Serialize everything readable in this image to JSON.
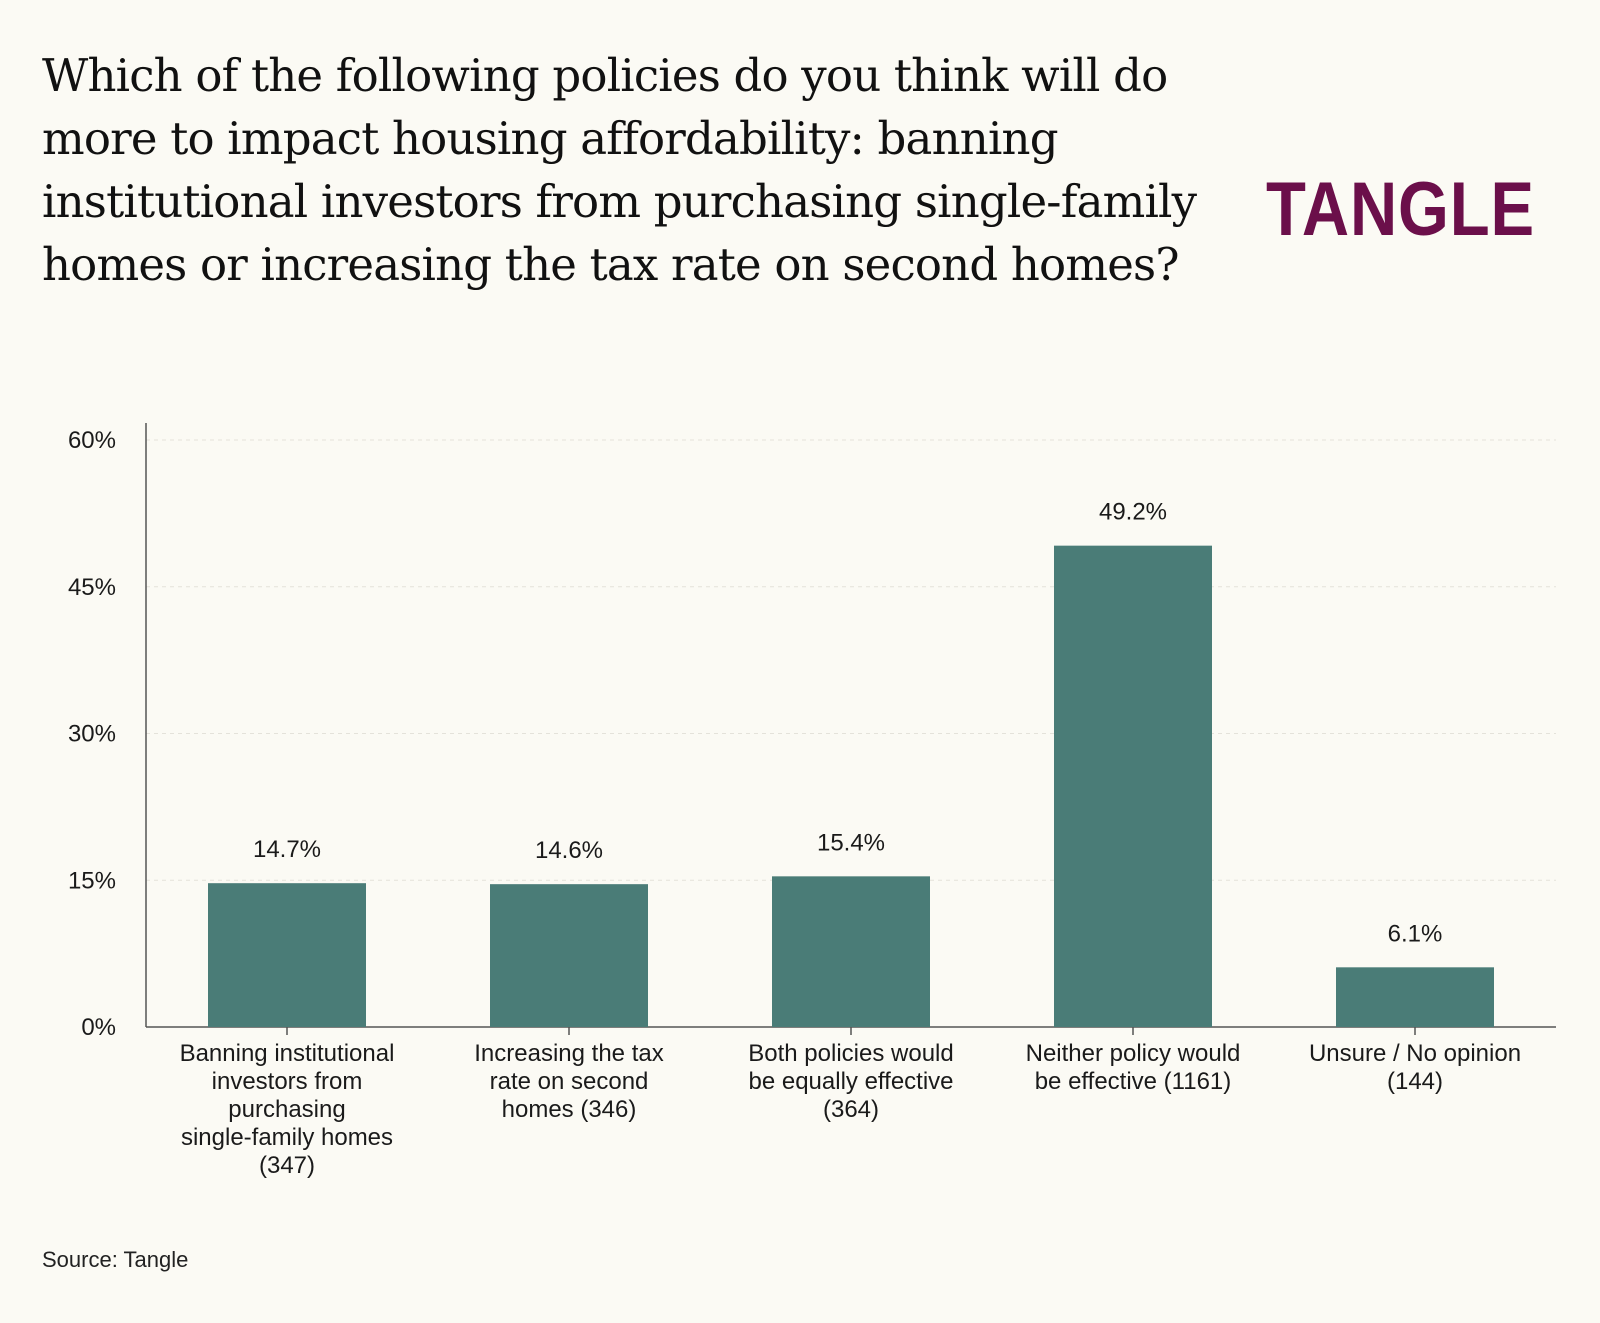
{
  "logo": "TANGLE",
  "source": "Source: Tangle",
  "colors": {
    "background": "#fbfaf4",
    "bar": "#4a7c77",
    "logo": "#6b0f4a"
  },
  "chart_data": {
    "type": "bar",
    "title": "Which of the following policies do you think will do more to impact housing affordability: banning institutional investors from purchasing single-family homes or increasing the tax rate on second homes?",
    "categories": [
      "Banning institutional investors from purchasing single-family homes (347)",
      "Increasing the tax rate on second homes (346)",
      "Both policies would be equally effective (364)",
      "Neither policy would be effective (1161)",
      "Unsure / No opinion (144)"
    ],
    "category_lines": [
      [
        "Banning institutional",
        "investors from",
        "purchasing",
        "single-family homes",
        "(347)"
      ],
      [
        "Increasing the tax",
        "rate on second",
        "homes (346)"
      ],
      [
        "Both policies would",
        "be equally effective",
        "(364)"
      ],
      [
        "Neither policy would",
        "be effective (1161)"
      ],
      [
        "Unsure / No opinion",
        "(144)"
      ]
    ],
    "values": [
      14.7,
      14.6,
      15.4,
      49.2,
      6.1
    ],
    "value_labels": [
      "14.7%",
      "14.6%",
      "15.4%",
      "49.2%",
      "6.1%"
    ],
    "yticks": [
      0,
      15,
      30,
      45,
      60
    ],
    "ytick_labels": [
      "0%",
      "15%",
      "30%",
      "45%",
      "60%"
    ],
    "ylim": [
      0,
      60
    ],
    "xlabel": "",
    "ylabel": "",
    "grid": true,
    "legend": "none"
  }
}
